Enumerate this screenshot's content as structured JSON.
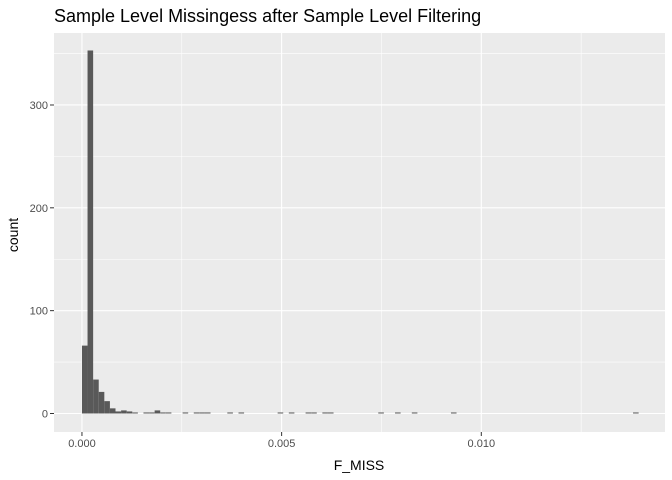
{
  "chart_data": {
    "type": "bar",
    "title": "Sample Level Missingess after Sample Level Filtering",
    "xlabel": "F_MISS",
    "ylabel": "count",
    "xlim": [
      -0.0007,
      0.0146
    ],
    "ylim": [
      -18,
      370
    ],
    "x_ticks": [
      0.0,
      0.005,
      0.01
    ],
    "x_tick_labels": [
      "0.000",
      "0.005",
      "0.010"
    ],
    "y_ticks": [
      0,
      100,
      200,
      300
    ],
    "y_tick_labels": [
      "0",
      "100",
      "200",
      "300"
    ],
    "grid": true,
    "bin_width": 0.00014,
    "bins": [
      {
        "x0": 0.0,
        "count": 66
      },
      {
        "x0": 0.00014,
        "count": 353
      },
      {
        "x0": 0.00028,
        "count": 33
      },
      {
        "x0": 0.00042,
        "count": 21
      },
      {
        "x0": 0.00056,
        "count": 12
      },
      {
        "x0": 0.0007,
        "count": 5
      },
      {
        "x0": 0.00084,
        "count": 2
      },
      {
        "x0": 0.00098,
        "count": 3
      },
      {
        "x0": 0.00112,
        "count": 2
      },
      {
        "x0": 0.00126,
        "count": 1
      },
      {
        "x0": 0.00154,
        "count": 1
      },
      {
        "x0": 0.00168,
        "count": 1
      },
      {
        "x0": 0.00182,
        "count": 3
      },
      {
        "x0": 0.00196,
        "count": 1
      },
      {
        "x0": 0.0021,
        "count": 1
      },
      {
        "x0": 0.00252,
        "count": 1
      },
      {
        "x0": 0.0028,
        "count": 1
      },
      {
        "x0": 0.00294,
        "count": 1
      },
      {
        "x0": 0.00308,
        "count": 1
      },
      {
        "x0": 0.00364,
        "count": 1
      },
      {
        "x0": 0.00392,
        "count": 1
      },
      {
        "x0": 0.0049,
        "count": 1
      },
      {
        "x0": 0.00518,
        "count": 1
      },
      {
        "x0": 0.0056,
        "count": 1
      },
      {
        "x0": 0.00574,
        "count": 1
      },
      {
        "x0": 0.00602,
        "count": 1
      },
      {
        "x0": 0.00616,
        "count": 1
      },
      {
        "x0": 0.00742,
        "count": 1
      },
      {
        "x0": 0.00784,
        "count": 1
      },
      {
        "x0": 0.00826,
        "count": 1
      },
      {
        "x0": 0.00924,
        "count": 1
      },
      {
        "x0": 0.0138,
        "count": 1
      }
    ]
  },
  "colors": {
    "panel_background": "#ebebeb",
    "grid_major": "#ffffff",
    "bar_fill": "#595959",
    "tick_mark": "#333333"
  }
}
